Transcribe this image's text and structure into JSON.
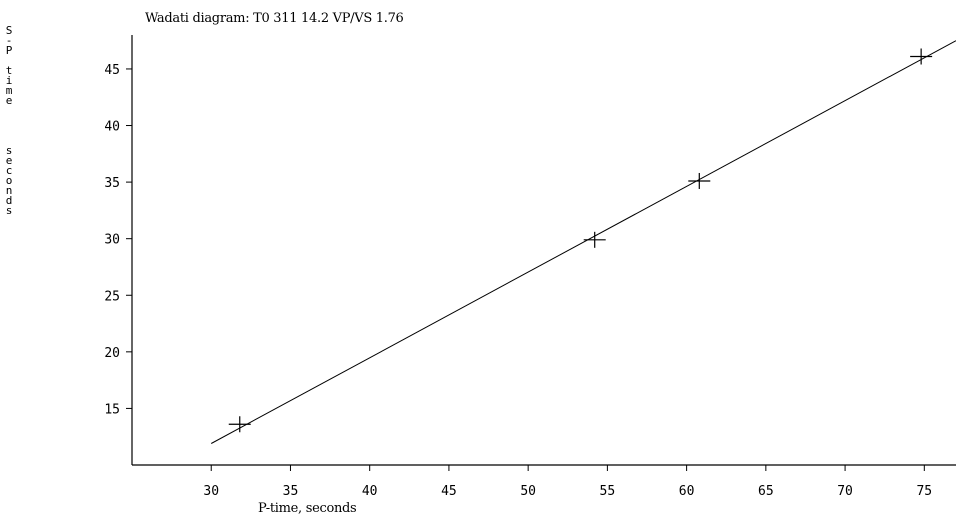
{
  "chart_data": {
    "type": "scatter",
    "title": "Wadati diagram:  T0  311  14.2  VP/VS   1.76",
    "xlabel": "P-time, seconds",
    "ylabel": "S-P time    seconds",
    "xlim": [
      25,
      77
    ],
    "ylim": [
      10,
      48
    ],
    "x_ticks": [
      "30",
      "35",
      "40",
      "45",
      "50",
      "55",
      "60",
      "65",
      "70",
      "75"
    ],
    "y_ticks": [
      "15",
      "20",
      "25",
      "30",
      "35",
      "40",
      "45"
    ],
    "points": [
      {
        "x": 31.8,
        "y": 13.6
      },
      {
        "x": 54.2,
        "y": 29.9
      },
      {
        "x": 60.8,
        "y": 35.1
      },
      {
        "x": 74.8,
        "y": 46.1
      }
    ],
    "fit_line": {
      "from": [
        30,
        11.9
      ],
      "to": [
        77,
        47.5
      ]
    },
    "marker": "plus",
    "grid": false,
    "legend": "none"
  }
}
